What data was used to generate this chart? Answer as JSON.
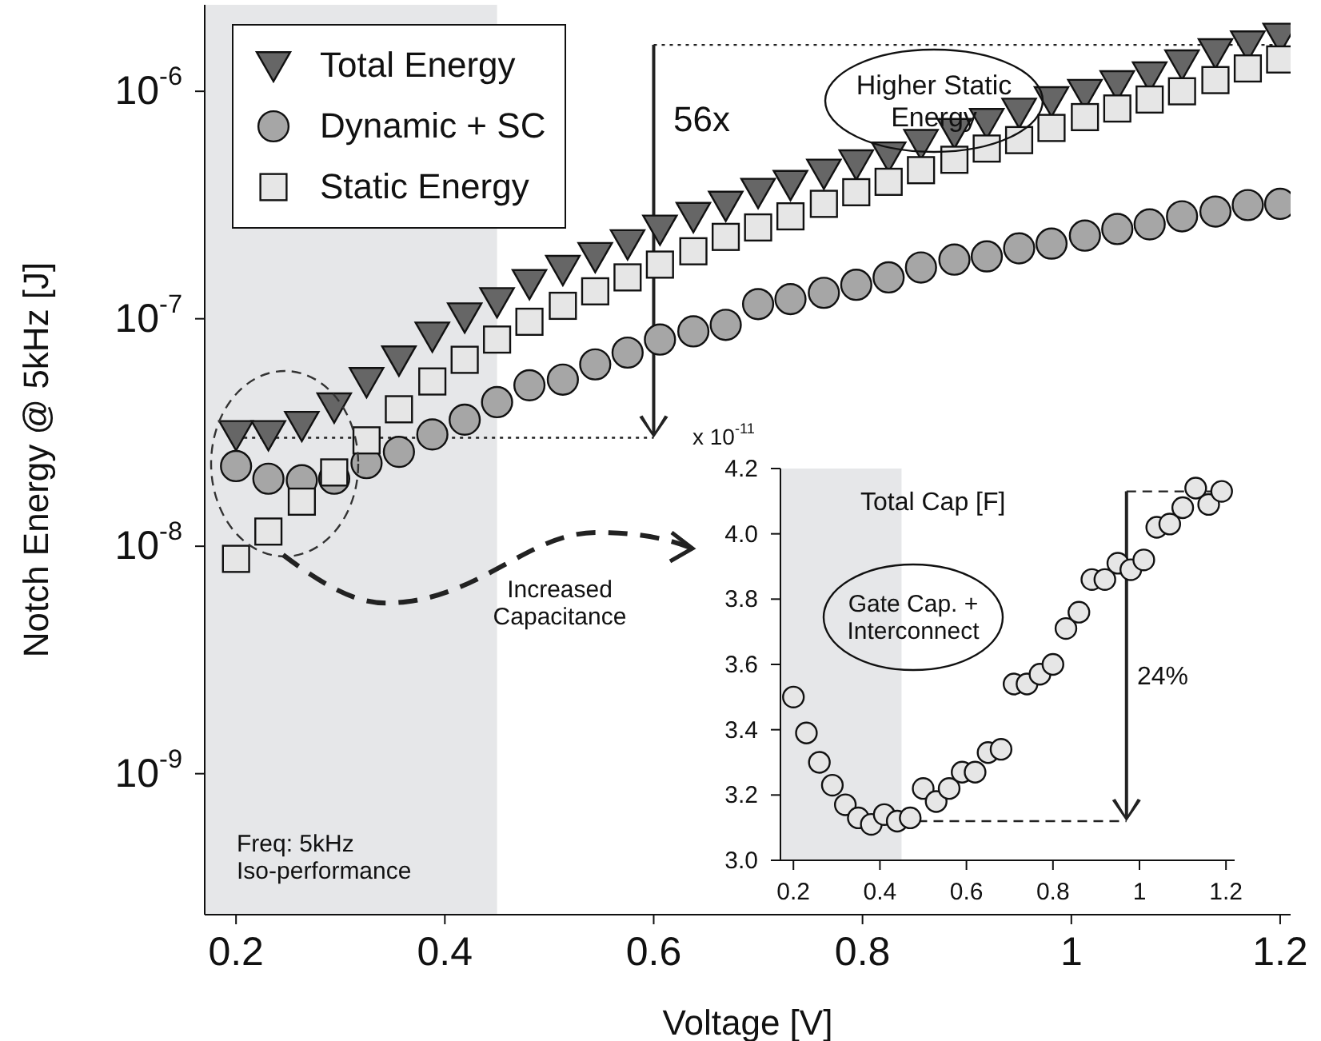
{
  "chart_data": [
    {
      "type": "scatter",
      "xlabel": "Voltage [V]",
      "ylabel": "Notch Energy @ 5kHz [J]",
      "log": "y",
      "grid": false,
      "legend": "top left",
      "xlim": [
        0.17,
        1.21
      ],
      "xticks": [
        0.2,
        0.4,
        0.6,
        0.8,
        1,
        1.2
      ],
      "ylim": [
        2.4e-10,
        2.4e-06
      ],
      "yticks": [
        {
          "value": 1e-09,
          "label": "10$^{-9}$"
        },
        {
          "value": 1e-08,
          "label": "10$^{-8}$"
        },
        {
          "value": 1e-07,
          "label": "10$^{-7}$"
        },
        {
          "value": 1e-06,
          "label": "10$^{-6}$"
        }
      ],
      "x": [
        0.2,
        0.231,
        0.263,
        0.294,
        0.325,
        0.356,
        0.388,
        0.419,
        0.45,
        0.481,
        0.513,
        0.544,
        0.575,
        0.606,
        0.638,
        0.669,
        0.7,
        0.731,
        0.763,
        0.794,
        0.825,
        0.856,
        0.888,
        0.919,
        0.95,
        0.981,
        1.013,
        1.044,
        1.075,
        1.106,
        1.138,
        1.169,
        1.2
      ],
      "series": [
        {
          "name": "Total Energy",
          "color": "#666666",
          "marker": "triangle",
          "values": [
            3.1e-08,
            3.1e-08,
            3.4e-08,
            4.1e-08,
            5.3e-08,
            6.6e-08,
            8.4e-08,
            1.02e-07,
            1.19e-07,
            1.43e-07,
            1.65e-07,
            1.88e-07,
            2.14e-07,
            2.48e-07,
            2.82e-07,
            3.16e-07,
            3.6e-07,
            3.9e-07,
            4.37e-07,
            4.8e-07,
            5.2e-07,
            5.9e-07,
            6.6e-07,
            7.3e-07,
            8.1e-07,
            9.1e-07,
            9.8e-07,
            1.07e-06,
            1.17e-06,
            1.32e-06,
            1.48e-06,
            1.6e-06,
            1.73e-06
          ]
        },
        {
          "name": "Dynamic + SC",
          "color": "#a6a6a6",
          "marker": "circle",
          "values": [
            2.25e-08,
            1.98e-08,
            1.95e-08,
            1.98e-08,
            2.32e-08,
            2.6e-08,
            3.1e-08,
            3.6e-08,
            4.3e-08,
            5.1e-08,
            5.4e-08,
            6.3e-08,
            7.1e-08,
            8.1e-08,
            8.8e-08,
            9.4e-08,
            1.16e-07,
            1.22e-07,
            1.3e-07,
            1.41e-07,
            1.52e-07,
            1.68e-07,
            1.82e-07,
            1.88e-07,
            2.04e-07,
            2.14e-07,
            2.32e-07,
            2.48e-07,
            2.6e-07,
            2.82e-07,
            2.96e-07,
            3.16e-07,
            3.2e-07
          ]
        },
        {
          "name": "Static Energy",
          "color": "#e6e6e6",
          "marker": "square",
          "values": [
            8.8e-09,
            1.16e-08,
            1.57e-08,
            2.11e-08,
            2.92e-08,
            4e-08,
            5.3e-08,
            6.6e-08,
            8.1e-08,
            9.7e-08,
            1.14e-07,
            1.32e-07,
            1.52e-07,
            1.73e-07,
            1.98e-07,
            2.29e-07,
            2.52e-07,
            2.82e-07,
            3.2e-07,
            3.6e-07,
            4e-07,
            4.5e-07,
            5e-07,
            5.6e-07,
            6.1e-07,
            6.9e-07,
            7.7e-07,
            8.4e-07,
            9.2e-07,
            1e-06,
            1.12e-06,
            1.26e-06,
            1.38e-06
          ]
        }
      ],
      "bands": [
        {
          "axis": "x",
          "from": 0.17,
          "to": 0.45,
          "color": "#e6e7e9"
        }
      ],
      "ref_lines": [
        {
          "axis": "y",
          "value": 3e-08,
          "line_style": "dotted"
        },
        {
          "axis": "y",
          "value": 1.6e-06,
          "line_style": "dotted"
        }
      ],
      "annotations": [
        "56x",
        "Higher Static\nEnergy",
        "Increased\nCapacitance",
        "Freq: 5kHz\nIso-performance"
      ]
    },
    {
      "type": "scatter",
      "title": "Total Cap [F]",
      "grid": false,
      "xlim": [
        0.17,
        1.22
      ],
      "xticks": [
        0.2,
        0.4,
        0.6,
        0.8,
        1,
        1.2
      ],
      "ylim": [
        3.0,
        4.2
      ],
      "yticks": [
        {
          "value": 3,
          "label": "3.0"
        },
        3.2,
        3.4,
        3.6,
        3.8,
        {
          "value": 4,
          "label": "4.0"
        },
        4.2
      ],
      "x": [
        0.2,
        0.23,
        0.26,
        0.29,
        0.32,
        0.35,
        0.38,
        0.41,
        0.44,
        0.47,
        0.5,
        0.53,
        0.56,
        0.59,
        0.62,
        0.65,
        0.68,
        0.71,
        0.74,
        0.77,
        0.8,
        0.83,
        0.86,
        0.89,
        0.92,
        0.95,
        0.98,
        1.01,
        1.04,
        1.07,
        1.1,
        1.13,
        1.16,
        1.19
      ],
      "series": [
        {
          "color": "#e6e6e6",
          "marker": "circle",
          "values": [
            3.5,
            3.39,
            3.3,
            3.23,
            3.17,
            3.13,
            3.11,
            3.14,
            3.12,
            3.13,
            3.22,
            3.18,
            3.22,
            3.27,
            3.27,
            3.33,
            3.34,
            3.54,
            3.54,
            3.57,
            3.6,
            3.71,
            3.76,
            3.86,
            3.86,
            3.91,
            3.89,
            3.92,
            4.02,
            4.03,
            4.08,
            4.14,
            4.09,
            4.13
          ]
        }
      ],
      "bands": [
        {
          "axis": "x",
          "from": 0.17,
          "to": 0.45,
          "color": "#e6e7e9"
        }
      ],
      "ref_lines": [
        {
          "axis": "y",
          "value": 3.12,
          "line_style": "dashed"
        },
        {
          "axis": "y",
          "value": 4.13,
          "line_style": "dashed"
        }
      ],
      "annotations": [
        "24%",
        "Gate Cap. +\nInterconnect",
        "x 10$^{-11}$"
      ]
    }
  ]
}
